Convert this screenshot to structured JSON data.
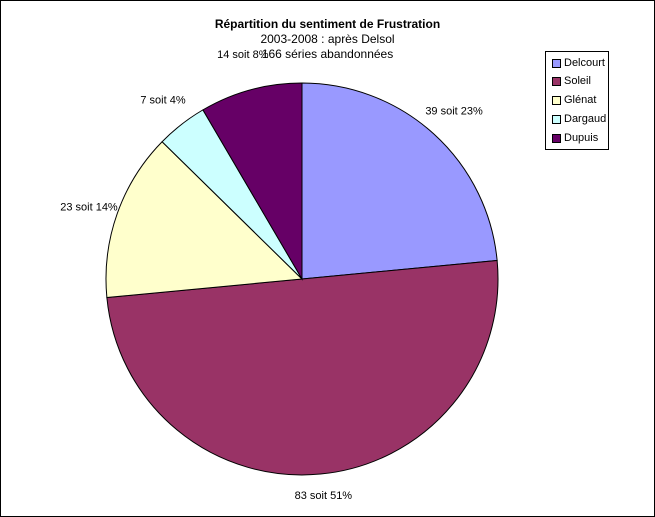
{
  "chart_data": {
    "type": "pie",
    "title": "Répartition du sentiment de Frustration",
    "subtitle_lines": [
      "2003-2008 : après Delsol",
      "166 séries abandonnées"
    ],
    "slices": [
      {
        "name": "Delcourt",
        "value": 39,
        "label": "39 soit 23%",
        "color": "#9999ff"
      },
      {
        "name": "Soleil",
        "value": 83,
        "label": "83 soit 51%",
        "color": "#993366"
      },
      {
        "name": "Glénat",
        "value": 23,
        "label": "23 soit 14%",
        "color": "#ffffcc"
      },
      {
        "name": "Dargaud",
        "value": 7,
        "label": "7 soit 4%",
        "color": "#ccffff"
      },
      {
        "name": "Dupuis",
        "value": 14,
        "label": "14 soit 8%",
        "color": "#660066"
      }
    ],
    "legend": {
      "position": "right",
      "entries": [
        "Delcourt",
        "Soleil",
        "Glénat",
        "Dargaud",
        "Dupuis"
      ]
    }
  }
}
